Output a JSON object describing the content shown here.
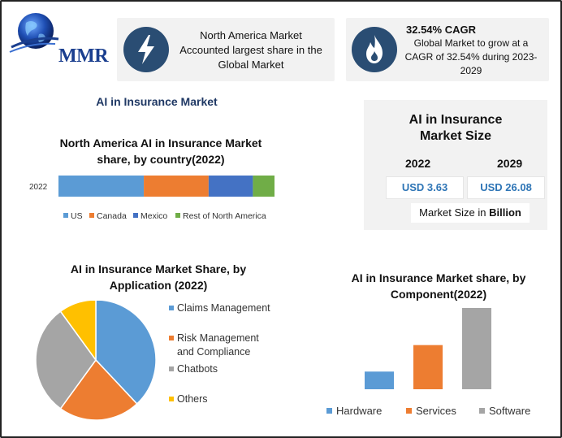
{
  "header": {
    "logo_text": "MMR",
    "card1_text": "North America Market Accounted largest share in the Global Market",
    "card2_title": "32.54% CAGR",
    "card2_text": "Global Market to grow at a CAGR of 32.54% during 2023-2029",
    "card1_icon": "lightning-bolt-icon",
    "card2_icon": "flame-icon",
    "icon_color": "#2a4d73"
  },
  "main_title": "AI in Insurance Market",
  "market_size": {
    "title": "AI in Insurance Market Size",
    "year1": "2022",
    "year2": "2029",
    "value1": "USD 3.63",
    "value2": "USD 26.08",
    "note_prefix": "Market Size in ",
    "note_bold": "Billion"
  },
  "chart_data": [
    {
      "type": "bar",
      "orientation": "horizontal-stacked",
      "title": "North America AI in Insurance Market share, by country(2022)",
      "categories": [
        "2022"
      ],
      "series": [
        {
          "name": "US",
          "values": [
            39.5
          ],
          "color": "#5b9bd5"
        },
        {
          "name": "Canada",
          "values": [
            30.0
          ],
          "color": "#ed7d31"
        },
        {
          "name": "Mexico",
          "values": [
            20.5
          ],
          "color": "#4472c4"
        },
        {
          "name": "Rest of North America",
          "values": [
            10.0
          ],
          "color": "#70ad47"
        }
      ],
      "legend": "bottom"
    },
    {
      "type": "pie",
      "title": "AI in Insurance Market Share, by Application (2022)",
      "labels": [
        "Claims Management",
        "Risk Management and Compliance",
        "Chatbots",
        "Others"
      ],
      "values": [
        38,
        22,
        30,
        10
      ],
      "colors": [
        "#5b9bd5",
        "#ed7d31",
        "#a5a5a5",
        "#ffc000"
      ],
      "legend": "right"
    },
    {
      "type": "bar",
      "title": "AI in Insurance Market share, by Component(2022)",
      "categories": [
        "Hardware",
        "Services",
        "Software"
      ],
      "values": [
        20,
        50,
        92
      ],
      "colors": [
        "#5b9bd5",
        "#ed7d31",
        "#a5a5a5"
      ],
      "legend": "bottom"
    }
  ]
}
